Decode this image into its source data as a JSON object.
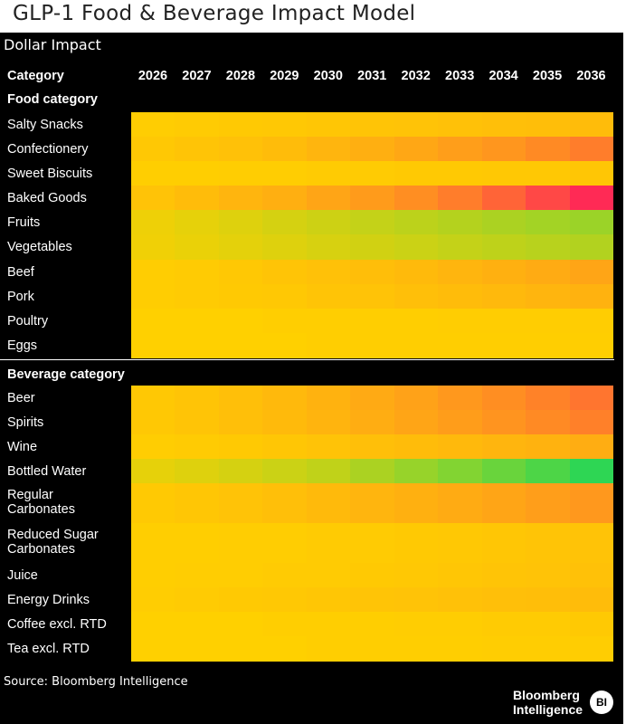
{
  "title": "GLP-1 Food & Beverage Impact Model",
  "subtitle": "Dollar Impact",
  "header": {
    "category_label": "Category"
  },
  "source": "Source: Bloomberg Intelligence",
  "logo": {
    "line1": "Bloomberg",
    "line2": "Intelligence",
    "badge": "BI"
  },
  "chart_data": {
    "type": "heatmap",
    "title": "GLP-1 Food & Beverage Impact Model",
    "subtitle": "Dollar Impact",
    "x": [
      "2026",
      "2027",
      "2028",
      "2029",
      "2030",
      "2031",
      "2032",
      "2033",
      "2034",
      "2035",
      "2036"
    ],
    "colors": {
      "positive": "#2ed654",
      "neutral": "#ffd000",
      "negative": "#ff2a55",
      "background": "#000000"
    },
    "value_scale": "relative intensity: -1 = strongest negative (red), 0 = neutral (yellow), 1 = strongest positive (green); no numeric legend shown",
    "groups": [
      {
        "name": "Food category",
        "rows": [
          {
            "label": "Salty Snacks",
            "values": [
              -0.02,
              -0.03,
              -0.04,
              -0.05,
              -0.06,
              -0.07,
              -0.08,
              -0.09,
              -0.1,
              -0.11,
              -0.12
            ]
          },
          {
            "label": "Confectionery",
            "values": [
              -0.05,
              -0.07,
              -0.09,
              -0.12,
              -0.16,
              -0.2,
              -0.25,
              -0.3,
              -0.35,
              -0.42,
              -0.5
            ]
          },
          {
            "label": "Sweet Biscuits",
            "values": [
              -0.01,
              -0.01,
              -0.02,
              -0.02,
              -0.03,
              -0.03,
              -0.04,
              -0.04,
              -0.05,
              -0.05,
              -0.06
            ]
          },
          {
            "label": "Baked Goods",
            "values": [
              -0.08,
              -0.12,
              -0.16,
              -0.2,
              -0.26,
              -0.32,
              -0.4,
              -0.5,
              -0.65,
              -0.82,
              -1.0
            ]
          },
          {
            "label": "Fruits",
            "values": [
              0.08,
              0.12,
              0.16,
              0.2,
              0.24,
              0.28,
              0.32,
              0.36,
              0.4,
              0.44,
              0.48
            ]
          },
          {
            "label": "Vegetables",
            "values": [
              0.07,
              0.1,
              0.13,
              0.16,
              0.19,
              0.22,
              0.25,
              0.28,
              0.31,
              0.34,
              0.37
            ]
          },
          {
            "label": "Beef",
            "values": [
              -0.02,
              -0.03,
              -0.05,
              -0.07,
              -0.09,
              -0.11,
              -0.13,
              -0.16,
              -0.19,
              -0.22,
              -0.26
            ]
          },
          {
            "label": "Pork",
            "values": [
              -0.02,
              -0.03,
              -0.04,
              -0.05,
              -0.07,
              -0.08,
              -0.1,
              -0.12,
              -0.14,
              -0.16,
              -0.18
            ]
          },
          {
            "label": "Poultry",
            "values": [
              0.0,
              0.0,
              0.0,
              -0.01,
              -0.01,
              -0.01,
              -0.01,
              -0.02,
              -0.02,
              -0.02,
              -0.02
            ]
          },
          {
            "label": "Eggs",
            "values": [
              0.0,
              0.0,
              0.0,
              0.0,
              -0.01,
              -0.01,
              -0.01,
              -0.01,
              -0.01,
              -0.01,
              -0.01
            ]
          }
        ]
      },
      {
        "name": "Beverage category",
        "rows": [
          {
            "label": "Beer",
            "values": [
              -0.05,
              -0.07,
              -0.1,
              -0.14,
              -0.18,
              -0.23,
              -0.28,
              -0.34,
              -0.4,
              -0.47,
              -0.55
            ]
          },
          {
            "label": "Spirits",
            "values": [
              -0.05,
              -0.07,
              -0.1,
              -0.13,
              -0.17,
              -0.21,
              -0.26,
              -0.31,
              -0.36,
              -0.42,
              -0.48
            ]
          },
          {
            "label": "Wine",
            "values": [
              -0.02,
              -0.03,
              -0.04,
              -0.06,
              -0.08,
              -0.1,
              -0.12,
              -0.14,
              -0.16,
              -0.18,
              -0.21
            ]
          },
          {
            "label": "Bottled Water",
            "values": [
              0.12,
              0.16,
              0.2,
              0.25,
              0.3,
              0.4,
              0.5,
              0.6,
              0.72,
              0.85,
              1.0
            ]
          },
          {
            "label": "Regular Carbonates",
            "values": [
              -0.04,
              -0.06,
              -0.08,
              -0.1,
              -0.13,
              -0.16,
              -0.19,
              -0.22,
              -0.26,
              -0.3,
              -0.34
            ]
          },
          {
            "label": "Reduced Sugar Carbonates",
            "values": [
              -0.01,
              -0.01,
              -0.02,
              -0.02,
              -0.03,
              -0.03,
              -0.04,
              -0.05,
              -0.06,
              -0.07,
              -0.08
            ]
          },
          {
            "label": "Juice",
            "values": [
              -0.01,
              -0.02,
              -0.02,
              -0.03,
              -0.03,
              -0.04,
              -0.05,
              -0.06,
              -0.07,
              -0.08,
              -0.09
            ]
          },
          {
            "label": "Energy Drinks",
            "values": [
              -0.02,
              -0.03,
              -0.04,
              -0.05,
              -0.06,
              -0.07,
              -0.08,
              -0.09,
              -0.1,
              -0.11,
              -0.12
            ]
          },
          {
            "label": "Coffee excl. RTD",
            "values": [
              0.0,
              0.0,
              0.0,
              -0.01,
              -0.01,
              -0.01,
              -0.02,
              -0.02,
              -0.03,
              -0.03,
              -0.04
            ]
          },
          {
            "label": "Tea excl. RTD",
            "values": [
              0.0,
              0.0,
              0.0,
              0.0,
              -0.01,
              -0.01,
              -0.01,
              -0.01,
              -0.02,
              -0.02,
              -0.02
            ]
          }
        ]
      }
    ]
  }
}
